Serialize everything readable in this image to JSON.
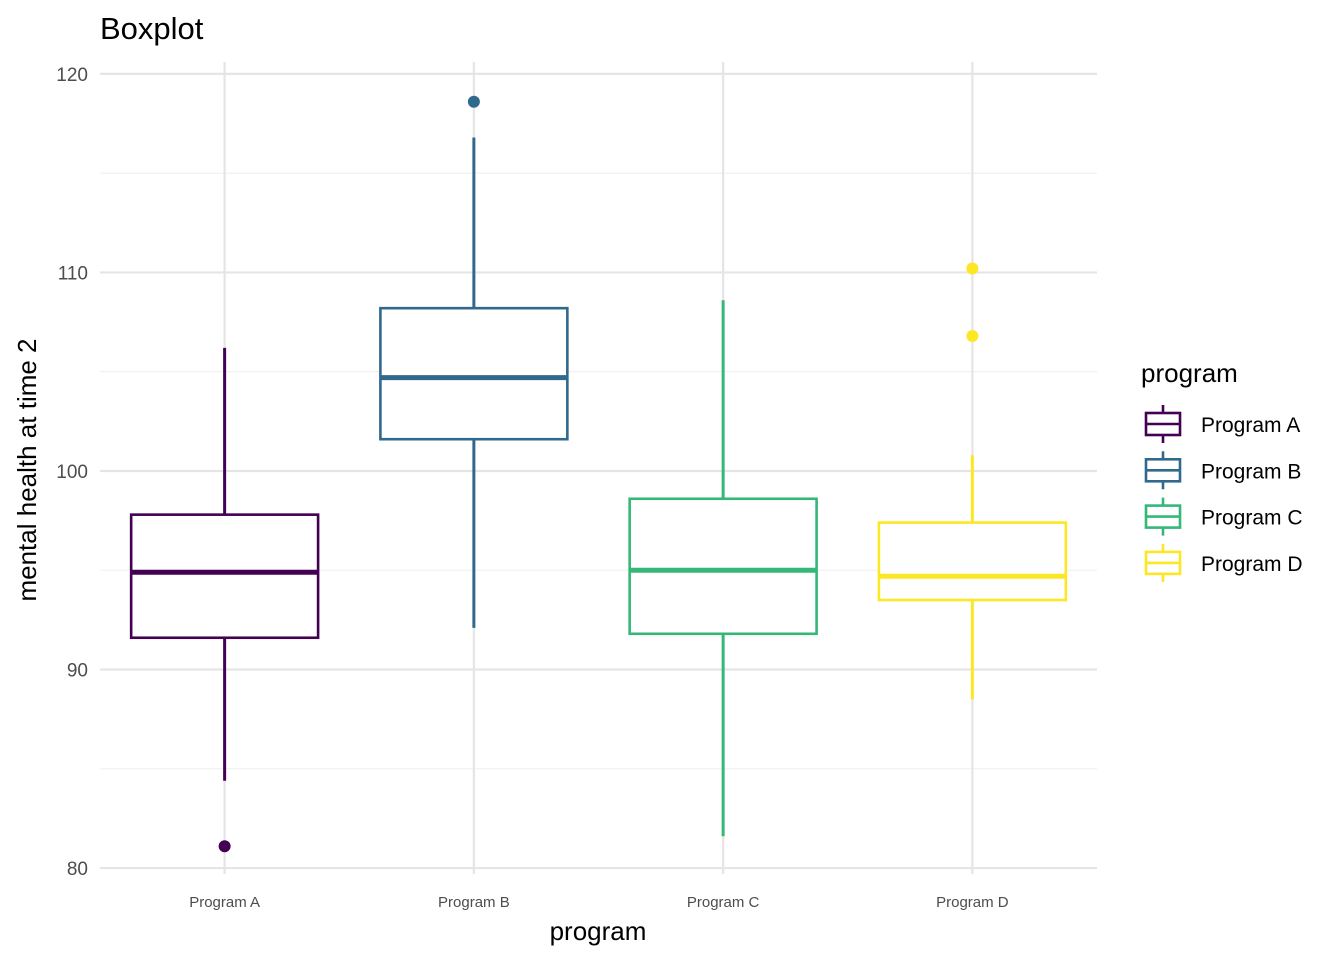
{
  "chart_data": {
    "type": "boxplot",
    "title": "Boxplot",
    "xlabel": "program",
    "ylabel": "mental health at time 2",
    "ylim": [
      79.7,
      120.6
    ],
    "yticks": [
      80,
      90,
      100,
      110,
      120
    ],
    "grid": true,
    "legend": {
      "title": "program",
      "position": "right"
    },
    "categories": [
      "Program A",
      "Program B",
      "Program C",
      "Program D"
    ],
    "series": [
      {
        "name": "Program A",
        "color": "#440154",
        "whisker_low": 84.4,
        "q1": 91.6,
        "median": 94.9,
        "q3": 97.8,
        "whisker_high": 106.2,
        "outliers": [
          81.1
        ]
      },
      {
        "name": "Program B",
        "color": "#31688E",
        "whisker_low": 92.1,
        "q1": 101.6,
        "median": 104.7,
        "q3": 108.2,
        "whisker_high": 116.8,
        "outliers": [
          118.6
        ]
      },
      {
        "name": "Program C",
        "color": "#35B779",
        "whisker_low": 81.6,
        "q1": 91.8,
        "median": 95.0,
        "q3": 98.6,
        "whisker_high": 108.6,
        "outliers": []
      },
      {
        "name": "Program D",
        "color": "#FDE725",
        "whisker_low": 88.5,
        "q1": 93.5,
        "median": 94.7,
        "q3": 97.4,
        "whisker_high": 100.8,
        "outliers": [
          110.2,
          106.8
        ]
      }
    ]
  }
}
